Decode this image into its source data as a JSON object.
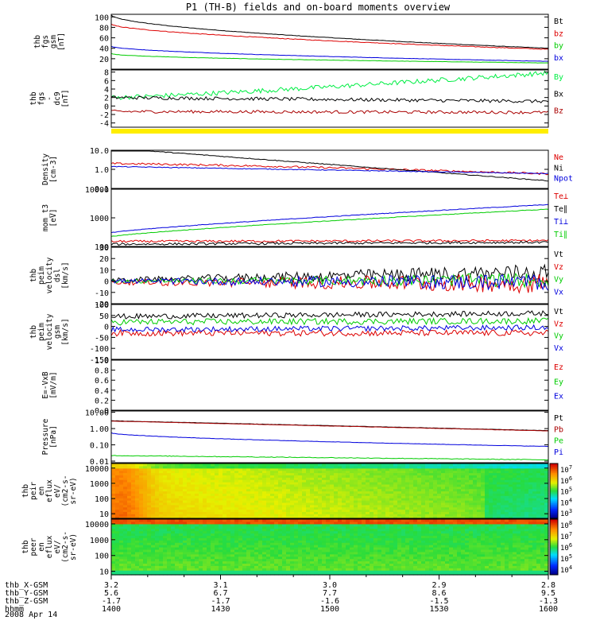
{
  "title": "P1 (TH-B) fields and on-board moments overview",
  "date_label": "2008 Apr 14",
  "chart_data": [
    {
      "type": "line",
      "name": "fgs",
      "ylabel": [
        "thb",
        "fgs",
        "gsm",
        "[nT]"
      ],
      "ylim": [
        0,
        105
      ],
      "ticks": [
        {
          "v": 100,
          "label": "100"
        },
        {
          "v": 80,
          "label": "80"
        },
        {
          "v": 60,
          "label": "60"
        },
        {
          "v": 40,
          "label": "40"
        },
        {
          "v": 20,
          "label": "20"
        }
      ],
      "series": [
        {
          "name": "Bt",
          "color": "#000000",
          "start": 104,
          "end": 40,
          "noise": 0.4,
          "curve": 0.55
        },
        {
          "name": "bz",
          "color": "#dd0000",
          "start": 86,
          "end": 38,
          "noise": 0.6,
          "curve": 0.6
        },
        {
          "name": "by",
          "color": "#00cc00",
          "start": 30,
          "end": 12,
          "noise": 0.3,
          "curve": 0.5
        },
        {
          "name": "bx",
          "color": "#0000dd",
          "start": 44,
          "end": 15,
          "noise": 0.3,
          "curve": 0.55
        }
      ]
    },
    {
      "type": "line",
      "name": "fgs_dc",
      "ylabel": [
        "thb",
        "fgs",
        "-",
        "dc9",
        "[nT]"
      ],
      "ylim": [
        -5,
        8.5
      ],
      "ticks": [
        {
          "v": 8,
          "label": "8"
        },
        {
          "v": 6,
          "label": "6"
        },
        {
          "v": 4,
          "label": "4"
        },
        {
          "v": 2,
          "label": "2"
        },
        {
          "v": 0,
          "label": "0"
        },
        {
          "v": -2,
          "label": "-2"
        },
        {
          "v": -4,
          "label": "-4"
        }
      ],
      "series": [
        {
          "name": "By",
          "color": "#00ee44",
          "start": 2,
          "end": 7.8,
          "noise": 0.55,
          "curve": 1.2
        },
        {
          "name": "Bx",
          "color": "#000000",
          "start": 2,
          "end": 1.1,
          "noise": 0.4,
          "curve": 1
        },
        {
          "name": "Bz",
          "color": "#aa0000",
          "start": -1.3,
          "end": -1.5,
          "noise": 0.35,
          "curve": 1
        }
      ]
    },
    {
      "type": "line",
      "name": "density",
      "ylabel": [
        "Density",
        "[cm-3]"
      ],
      "ylim": [
        0.1,
        10
      ],
      "log": true,
      "ticks": [
        {
          "v": 10,
          "label": "10.0"
        },
        {
          "v": 1,
          "label": "1.0"
        },
        {
          "v": 0.1,
          "label": "0.1"
        }
      ],
      "series": [
        {
          "name": "Ne",
          "color": "#dd0000",
          "start": 2.0,
          "end": 0.58,
          "noise": 0.05,
          "curve": 1.3
        },
        {
          "name": "Ni",
          "color": "#000000",
          "start": 13,
          "end": 0.25,
          "noise": 0.02,
          "curve": 1
        },
        {
          "name": "Npot",
          "color": "#0000dd",
          "start": 1.4,
          "end": 0.6,
          "noise": 0.02,
          "curve": 1
        }
      ]
    },
    {
      "type": "line",
      "name": "mom_t",
      "ylabel": [
        "mom_t3",
        "[eV]"
      ],
      "ylim": [
        100,
        10000
      ],
      "log": true,
      "ticks": [
        {
          "v": 10000,
          "label": "10000"
        },
        {
          "v": 1000,
          "label": "1000"
        },
        {
          "v": 100,
          "label": "100"
        }
      ],
      "series": [
        {
          "name": "Te⊥",
          "color": "#dd0000",
          "start": 150,
          "end": 160,
          "noise": 0.04,
          "curve": 1
        },
        {
          "name": "Te∥",
          "color": "#000000",
          "start": 120,
          "end": 140,
          "noise": 0.04,
          "curve": 1
        },
        {
          "name": "Ti⊥",
          "color": "#0000dd",
          "start": 300,
          "end": 2900,
          "noise": 0.01,
          "curve": 0.8
        },
        {
          "name": "Ti∥",
          "color": "#00cc00",
          "start": 220,
          "end": 2000,
          "noise": 0.01,
          "curve": 0.8
        }
      ]
    },
    {
      "type": "line",
      "name": "peim_velocity",
      "ylabel": [
        "thb",
        "peim",
        "velocity",
        "dsl",
        "[km/s]"
      ],
      "ylim": [
        -20,
        30
      ],
      "ticks": [
        {
          "v": 30,
          "label": "30"
        },
        {
          "v": 20,
          "label": "20"
        },
        {
          "v": 10,
          "label": "10"
        },
        {
          "v": 0,
          "label": "0"
        },
        {
          "v": -10,
          "label": "-10"
        },
        {
          "v": -20,
          "label": "-20"
        }
      ],
      "series": [
        {
          "name": "Vt",
          "color": "#000000",
          "start": 1,
          "end": 8,
          "noise": 6,
          "curve": 1.5
        },
        {
          "name": "Vz",
          "color": "#dd0000",
          "start": -1,
          "end": -2,
          "noise": 7,
          "curve": 1.5
        },
        {
          "name": "Vy",
          "color": "#00cc00",
          "start": 0,
          "end": 1,
          "noise": 5,
          "curve": 1.5
        },
        {
          "name": "Vx",
          "color": "#0000dd",
          "start": 0,
          "end": -1,
          "noise": 6,
          "curve": 1.5
        }
      ]
    },
    {
      "type": "line",
      "name": "peim_gsm",
      "ylabel": [
        "thb",
        "peim",
        "velocity",
        "gsm",
        "[km/s]"
      ],
      "ylim": [
        -150,
        100
      ],
      "ticks": [
        {
          "v": 100,
          "label": "100"
        },
        {
          "v": 50,
          "label": "50"
        },
        {
          "v": 0,
          "label": "0"
        },
        {
          "v": -50,
          "label": "-50"
        },
        {
          "v": -100,
          "label": "-100"
        },
        {
          "v": -150,
          "label": "-150"
        }
      ],
      "series": [
        {
          "name": "Vt",
          "color": "#000000",
          "start": 45,
          "end": 60,
          "noise": 12,
          "curve": 1
        },
        {
          "name": "Vz",
          "color": "#dd0000",
          "start": -30,
          "end": -30,
          "noise": 14,
          "curve": 1
        },
        {
          "name": "Vy",
          "color": "#00cc00",
          "start": 20,
          "end": 25,
          "noise": 14,
          "curve": 1
        },
        {
          "name": "Vx",
          "color": "#0000dd",
          "start": -15,
          "end": -5,
          "noise": 12,
          "curve": 1
        }
      ]
    },
    {
      "type": "line",
      "name": "efield",
      "ylabel": [
        "E=-VxB",
        "[mV/m]"
      ],
      "ylim": [
        0,
        1
      ],
      "ticks": [
        {
          "v": 1,
          "label": "1.0"
        },
        {
          "v": 0.8,
          "label": "0.8"
        },
        {
          "v": 0.6,
          "label": "0.6"
        },
        {
          "v": 0.4,
          "label": "0.4"
        },
        {
          "v": 0.2,
          "label": "0.2"
        },
        {
          "v": 0,
          "label": "0.0"
        }
      ],
      "series": [
        {
          "name": "Ez",
          "color": "#dd0000",
          "values": []
        },
        {
          "name": "Ey",
          "color": "#00cc00",
          "values": []
        },
        {
          "name": "Ex",
          "color": "#0000dd",
          "values": []
        }
      ]
    },
    {
      "type": "line",
      "name": "pressure",
      "ylabel": [
        "Pressure",
        "[nPa]"
      ],
      "ylim": [
        0.008,
        12
      ],
      "log": true,
      "ticks": [
        {
          "v": 10,
          "label": "10.00"
        },
        {
          "v": 1,
          "label": "1.00"
        },
        {
          "v": 0.1,
          "label": "0.10"
        },
        {
          "v": 0.01,
          "label": "0.01"
        }
      ],
      "series": [
        {
          "name": "Pt",
          "color": "#000000",
          "start": 3.0,
          "end": 0.75,
          "noise": 0.01,
          "curve": 1
        },
        {
          "name": "Pb",
          "color": "#aa0000",
          "start": 2.9,
          "end": 0.72,
          "noise": 0.01,
          "curve": 1
        },
        {
          "name": "Pe",
          "color": "#00cc00",
          "start": 0.022,
          "end": 0.012,
          "noise": 0.02,
          "curve": 1
        },
        {
          "name": "Pi",
          "color": "#0000dd",
          "start": 0.55,
          "end": 0.08,
          "noise": 0.01,
          "curve": 0.6
        }
      ]
    },
    {
      "type": "heatmap",
      "name": "peir",
      "ylabel": [
        "thb",
        "peir",
        "en",
        "eflux",
        "eV/",
        "(cm2-s-",
        "sr-eV)"
      ],
      "ylim": [
        5,
        20000
      ],
      "log": true,
      "ticks": [
        {
          "v": 10000,
          "label": "10000"
        },
        {
          "v": 1000,
          "label": "1000"
        },
        {
          "v": 100,
          "label": "100"
        },
        {
          "v": 10,
          "label": "10"
        }
      ],
      "colorbar": {
        "ticks": [
          {
            "exp": "7",
            "label": "107"
          },
          {
            "exp": "6",
            "label": "106"
          },
          {
            "exp": "5",
            "label": "105"
          },
          {
            "exp": "4",
            "label": "104"
          },
          {
            "exp": "3",
            "label": "103"
          }
        ]
      }
    },
    {
      "type": "heatmap",
      "name": "peer",
      "ylabel": [
        "thb",
        "peer",
        "en",
        "eflux",
        "eV/",
        "(cm2-s-",
        "sr-eV)"
      ],
      "ylim": [
        6,
        20000
      ],
      "log": true,
      "ticks": [
        {
          "v": 10000,
          "label": "10000"
        },
        {
          "v": 1000,
          "label": "1000"
        },
        {
          "v": 100,
          "label": "100"
        },
        {
          "v": 10,
          "label": "10"
        }
      ],
      "colorbar": {
        "ticks": [
          {
            "exp": "8",
            "label": "108"
          },
          {
            "exp": "7",
            "label": "107"
          },
          {
            "exp": "6",
            "label": "106"
          },
          {
            "exp": "5",
            "label": "105"
          },
          {
            "exp": "4",
            "label": "104"
          }
        ]
      }
    }
  ],
  "x_axis": {
    "rows": [
      {
        "label": "thb_X-GSM",
        "values": [
          "3.2",
          "3.1",
          "3.0",
          "2.9",
          "2.8"
        ]
      },
      {
        "label": "thb_Y-GSM",
        "values": [
          "5.6",
          "6.7",
          "7.7",
          "8.6",
          "9.5"
        ]
      },
      {
        "label": "thb_Z-GSM",
        "values": [
          "-1.7",
          "-1.7",
          "-1.6",
          "-1.5",
          "-1.3"
        ]
      },
      {
        "label": "hhmm",
        "values": [
          "1400",
          "1430",
          "1500",
          "1530",
          "1600"
        ]
      }
    ],
    "hhmm": [
      1400,
      1430,
      1500,
      1530,
      1600
    ]
  },
  "colors": {
    "axis": "#000000",
    "yellow_band": "#ffee00"
  }
}
